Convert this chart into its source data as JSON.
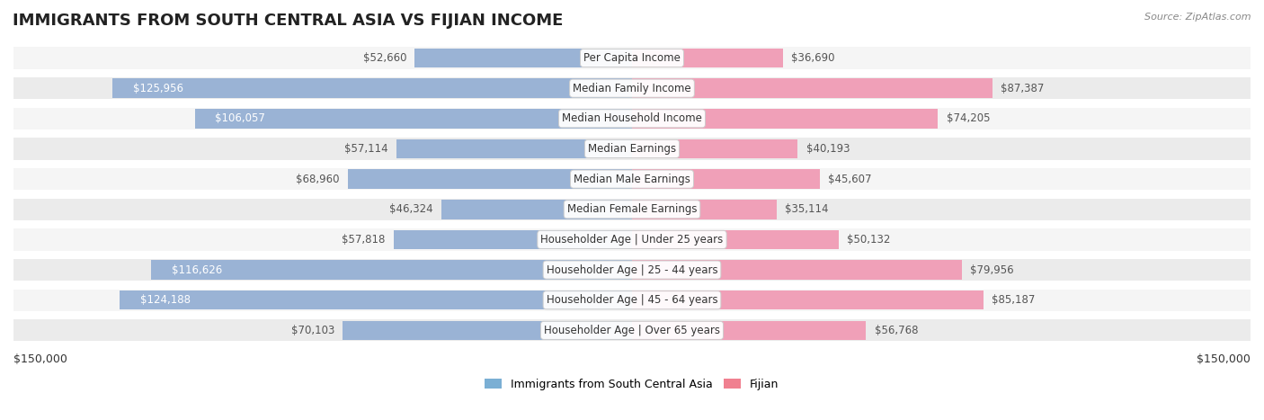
{
  "title": "IMMIGRANTS FROM SOUTH CENTRAL ASIA VS FIJIAN INCOME",
  "source": "Source: ZipAtlas.com",
  "categories": [
    "Per Capita Income",
    "Median Family Income",
    "Median Household Income",
    "Median Earnings",
    "Median Male Earnings",
    "Median Female Earnings",
    "Householder Age | Under 25 years",
    "Householder Age | 25 - 44 years",
    "Householder Age | 45 - 64 years",
    "Householder Age | Over 65 years"
  ],
  "left_values": [
    52660,
    125956,
    106057,
    57114,
    68960,
    46324,
    57818,
    116626,
    124188,
    70103
  ],
  "right_values": [
    36690,
    87387,
    74205,
    40193,
    45607,
    35114,
    50132,
    79956,
    85187,
    56768
  ],
  "left_color": "#9ab3d5",
  "right_color": "#f0a0b8",
  "left_label_color_dark": "#555555",
  "left_label_color_light": "#ffffff",
  "right_label_color_dark": "#555555",
  "right_label_color_light": "#ffffff",
  "bar_label_inside_threshold": 90000,
  "max_value": 150000,
  "legend_left": "Immigrants from South Central Asia",
  "legend_right": "Fijian",
  "legend_left_color": "#7bafd4",
  "legend_right_color": "#f08090",
  "background_color": "#ffffff",
  "row_bg_odd": "#f5f5f5",
  "row_bg_even": "#ebebeb",
  "xlabel_left": "$150,000",
  "xlabel_right": "$150,000",
  "title_fontsize": 13,
  "label_fontsize": 8.5,
  "category_fontsize": 8.5
}
